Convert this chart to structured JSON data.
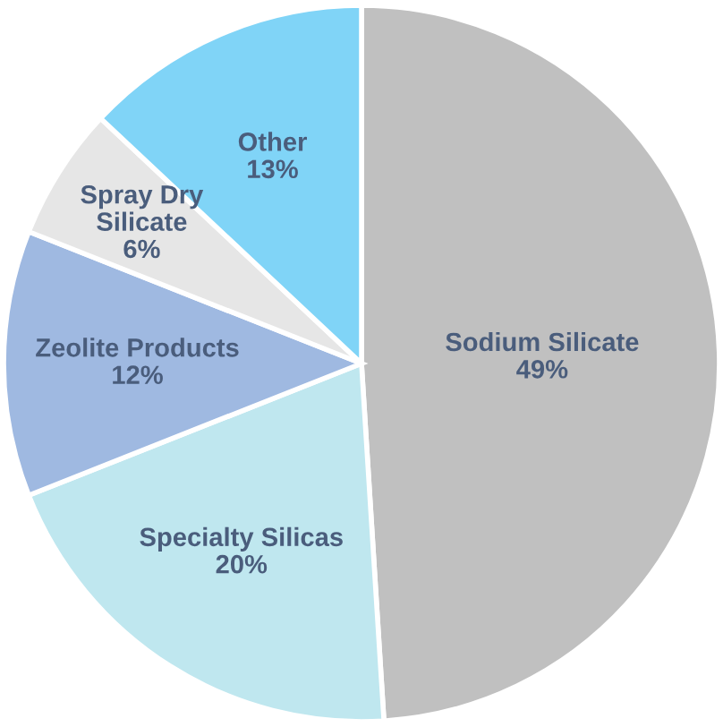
{
  "chart_data": {
    "type": "pie",
    "categories": [
      "Sodium Silicate",
      "Specialty Silicas",
      "Zeolite Products",
      "Spray Dry\nSilicate",
      "Other"
    ],
    "values": [
      49,
      20,
      12,
      6,
      13
    ],
    "colors": [
      "#c0c0c0",
      "#bfe7ef",
      "#9fb9e1",
      "#e6e6e6",
      "#80d4f7"
    ],
    "value_labels": [
      "49%",
      "20%",
      "12%",
      "6%",
      "13%"
    ],
    "legend": false
  }
}
